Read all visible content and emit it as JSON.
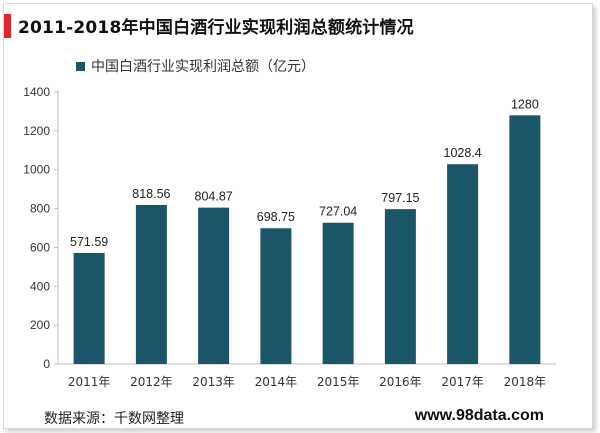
{
  "header": {
    "title": "2011-2018年中国白酒行业实现利润总额统计情况"
  },
  "colors": {
    "accent": "#e0262b",
    "bar": "#1a5568"
  },
  "footer": {
    "source": "数据来源：千数网整理",
    "watermark": "www.98data.com"
  },
  "chart_data": {
    "type": "bar",
    "title": "",
    "xlabel": "",
    "ylabel": "",
    "categories": [
      "2011年",
      "2012年",
      "2013年",
      "2014年",
      "2015年",
      "2016年",
      "2017年",
      "2018年"
    ],
    "series": [
      {
        "name": "中国白酒行业实现利润总额（亿元）",
        "values": [
          571.59,
          818.56,
          804.87,
          698.75,
          727.04,
          797.15,
          1028.4,
          1280
        ],
        "labels": [
          "571.59",
          "818.56",
          "804.87",
          "698.75",
          "727.04",
          "797.15",
          "1028.4",
          "1280"
        ]
      }
    ],
    "ylim": [
      0,
      1400
    ],
    "yticks": [
      0,
      200,
      400,
      600,
      800,
      1000,
      1200,
      1400
    ],
    "grid": false,
    "legend": "top-left"
  }
}
